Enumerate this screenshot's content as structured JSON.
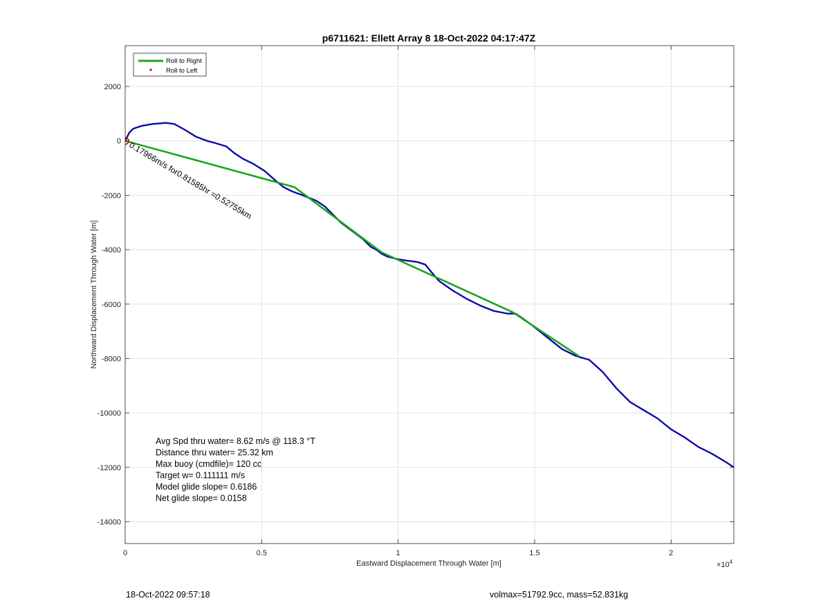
{
  "chart_data": {
    "type": "line",
    "title": "p6711621: Ellett Array 8 18-Oct-2022 04:17:47Z",
    "xlabel": "Eastward Displacement Through Water [m]",
    "ylabel": "Northward Displacement Through Water [m]",
    "x_multiplier_label": "×10",
    "x_multiplier_exponent": "4",
    "xlim": [
      0,
      22300
    ],
    "ylim": [
      -14800,
      3500
    ],
    "xticks": [
      0,
      5000,
      10000,
      15000,
      20000
    ],
    "xtick_labels": [
      "0",
      "0.5",
      "1",
      "1.5",
      "2"
    ],
    "yticks": [
      2000,
      0,
      -2000,
      -4000,
      -6000,
      -8000,
      -10000,
      -12000,
      -14000
    ],
    "ytick_labels": [
      "2000",
      "0",
      "-2000",
      "-4000",
      "-6000",
      "-8000",
      "-10000",
      "-12000",
      "-14000"
    ],
    "grid": true,
    "legend_position": "top-left",
    "legend": [
      {
        "label": "Roll to Right",
        "color": "#1aa61a",
        "marker": "line"
      },
      {
        "label": "Roll to Left",
        "color": "#e00000",
        "marker": "dot"
      }
    ],
    "series": [
      {
        "color": "#0a0aa8",
        "x": [
          0,
          150,
          300,
          600,
          1000,
          1500,
          1800,
          2200,
          2600,
          3000,
          3300,
          3700,
          4000,
          4300,
          4700,
          5100,
          5500,
          5800,
          6100,
          6500,
          7000,
          7300,
          7700,
          7900,
          8300,
          8700,
          9000,
          9200,
          9400,
          9600,
          10000,
          10300,
          10700,
          11000,
          11200,
          11500,
          12000,
          12500,
          13000,
          13500,
          14000,
          14300,
          14600,
          15000,
          15500,
          16000,
          16500,
          17000,
          17500,
          18000,
          18500,
          19000,
          19500,
          20000,
          20500,
          21000,
          21500,
          22000,
          22300
        ],
        "y": [
          0,
          300,
          450,
          550,
          620,
          660,
          620,
          400,
          150,
          0,
          -80,
          -200,
          -450,
          -650,
          -850,
          -1100,
          -1450,
          -1700,
          -1850,
          -2000,
          -2200,
          -2400,
          -2800,
          -3000,
          -3300,
          -3600,
          -3900,
          -4000,
          -4150,
          -4250,
          -4350,
          -4400,
          -4450,
          -4550,
          -4800,
          -5150,
          -5500,
          -5800,
          -6050,
          -6250,
          -6350,
          -6350,
          -6550,
          -6850,
          -7250,
          -7650,
          -7900,
          -8050,
          -8500,
          -9100,
          -9600,
          -9900,
          -10200,
          -10600,
          -10900,
          -11250,
          -11500,
          -11800,
          -12000
        ]
      },
      {
        "color": "#1aa61a",
        "x": [
          0,
          6200,
          9400,
          14200,
          16600
        ],
        "y": [
          0,
          -1700,
          -4100,
          -6300,
          -7900
        ]
      }
    ],
    "annotation": "0.17966m/s for0.81585hr =0.52755km",
    "markers": [
      {
        "label": "start",
        "x": 0,
        "y": 0,
        "color": "#e00000"
      }
    ]
  },
  "stats": [
    "Avg Spd thru water=  8.62 m/s @ 118.3 °T",
    "Distance thru water= 25.32 km",
    "Max buoy (cmdfile)= 120 cc",
    "Target w= 0.111111 m/s",
    "Model glide slope= 0.6186",
    "Net glide slope= 0.0158"
  ],
  "footer": {
    "left": "18-Oct-2022 09:57:18",
    "right": "volmax=51792.9cc, mass=52.831kg"
  }
}
